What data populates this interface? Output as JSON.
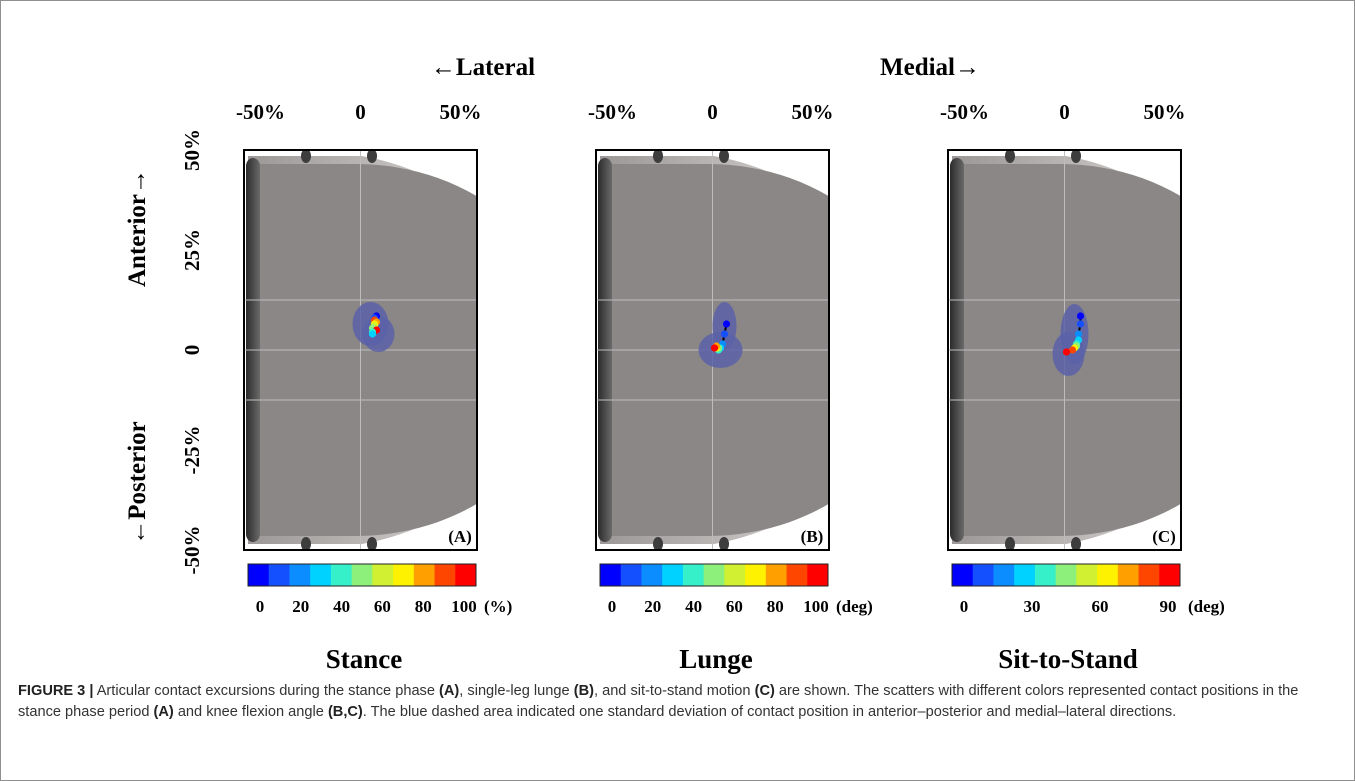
{
  "header": {
    "left": "←Lateral",
    "right": "Medial→"
  },
  "x_ticks": [
    "-50%",
    "0",
    "50%"
  ],
  "y_ticks": [
    "50%",
    "25%",
    "0",
    "-25%",
    "-50%"
  ],
  "y_labels": {
    "top": "Anterior→",
    "bottom": "←Posterior"
  },
  "colors": {
    "tibia_fill": "#8a8786",
    "tibia_rim": "#cfcbc9",
    "sd_area": "#5a62a8",
    "colormap": [
      "#0000ff",
      "#1550ff",
      "#0b8cff",
      "#00d2ff",
      "#35f0c8",
      "#8df07a",
      "#d2f032",
      "#fff200",
      "#ffa000",
      "#ff4600",
      "#ff0000"
    ]
  },
  "panels": [
    {
      "id": "A",
      "tag": "(A)",
      "title": "Stance",
      "colorbar_labels": [
        "0",
        "20",
        "40",
        "60",
        "80",
        "100"
      ],
      "unit": "(%)",
      "sd_area_upper": {
        "x_center": 5,
        "y_center": 13,
        "rx": 9,
        "ry": 11
      },
      "sd_area_lower": {
        "x_center": 9,
        "y_center": 8,
        "rx": 8,
        "ry": 9
      },
      "points": [
        {
          "x": 8,
          "y": 17,
          "c": "#0000ff"
        },
        {
          "x": 7,
          "y": 16,
          "c": "#1550ff"
        },
        {
          "x": 7,
          "y": 15,
          "c": "#ff4600"
        },
        {
          "x": 8,
          "y": 14,
          "c": "#ffa000"
        },
        {
          "x": 7,
          "y": 13,
          "c": "#fff200"
        },
        {
          "x": 7,
          "y": 12,
          "c": "#d2f032"
        },
        {
          "x": 6,
          "y": 11,
          "c": "#8df07a"
        },
        {
          "x": 8,
          "y": 10,
          "c": "#ff0000"
        },
        {
          "x": 6,
          "y": 9,
          "c": "#35f0c8"
        },
        {
          "x": 6,
          "y": 8,
          "c": "#00d2ff"
        }
      ]
    },
    {
      "id": "B",
      "tag": "(B)",
      "title": "Lunge",
      "colorbar_labels": [
        "0",
        "20",
        "40",
        "60",
        "80",
        "100"
      ],
      "unit": "(deg)",
      "sd_area_upper": {
        "x_center": 6,
        "y_center": 12,
        "rx": 6,
        "ry": 12
      },
      "sd_area_lower": {
        "x_center": 4,
        "y_center": 0,
        "rx": 11,
        "ry": 9
      },
      "points": [
        {
          "x": 7,
          "y": 13,
          "c": "#0000ff"
        },
        {
          "x": 6,
          "y": 8,
          "c": "#1550ff"
        },
        {
          "x": 5,
          "y": 3,
          "c": "#0b8cff"
        },
        {
          "x": 4,
          "y": 1,
          "c": "#00d2ff"
        },
        {
          "x": 3,
          "y": 0,
          "c": "#35f0c8"
        },
        {
          "x": 3,
          "y": 1,
          "c": "#8df07a"
        },
        {
          "x": 2,
          "y": 1,
          "c": "#fff200"
        },
        {
          "x": 2,
          "y": 2,
          "c": "#ffa000"
        },
        {
          "x": 1,
          "y": 1,
          "c": "#ff0000"
        }
      ]
    },
    {
      "id": "C",
      "tag": "(C)",
      "title": "Sit-to-Stand",
      "colorbar_labels": [
        "0",
        "30",
        "60",
        "90"
      ],
      "unit": "(deg)",
      "sd_area_upper": {
        "x_center": 5,
        "y_center": 8,
        "rx": 7,
        "ry": 15
      },
      "sd_area_lower": {
        "x_center": 2,
        "y_center": -2,
        "rx": 8,
        "ry": 11
      },
      "points": [
        {
          "x": 8,
          "y": 17,
          "c": "#0000ff"
        },
        {
          "x": 8,
          "y": 13,
          "c": "#1550ff"
        },
        {
          "x": 7,
          "y": 8,
          "c": "#0b8cff"
        },
        {
          "x": 7,
          "y": 5,
          "c": "#00d2ff"
        },
        {
          "x": 6,
          "y": 3,
          "c": "#35f0c8"
        },
        {
          "x": 6,
          "y": 2,
          "c": "#8df07a"
        },
        {
          "x": 5,
          "y": 1,
          "c": "#fff200"
        },
        {
          "x": 4,
          "y": 0,
          "c": "#ff4600"
        },
        {
          "x": 1,
          "y": -1,
          "c": "#ff0000"
        }
      ]
    }
  ],
  "caption": {
    "label": "FIGURE 3 |",
    "t1": " Articular contact excursions during the stance phase ",
    "b1": "(A)",
    "t2": ", single-leg lunge ",
    "b2": "(B)",
    "t3": ", and sit-to-stand motion ",
    "b3": "(C)",
    "t4": " are shown. The scatters with different colors represented contact positions in the stance phase period ",
    "b4": "(A)",
    "t5": " and knee flexion angle ",
    "b5": "(B,C)",
    "t6": ". The blue dashed area indicated one standard deviation of contact position in anterior–posterior and medial–lateral directions."
  }
}
